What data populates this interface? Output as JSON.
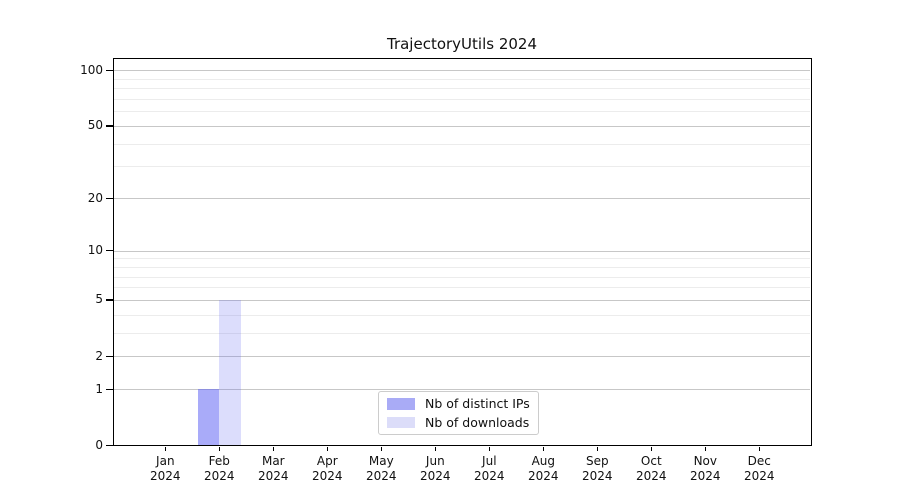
{
  "chart_data": {
    "type": "bar",
    "title": "TrajectoryUtils 2024",
    "months": [
      "Jan",
      "Feb",
      "Mar",
      "Apr",
      "May",
      "Jun",
      "Jul",
      "Aug",
      "Sep",
      "Oct",
      "Nov",
      "Dec"
    ],
    "year": "2024",
    "series": [
      {
        "name": "Nb of distinct IPs",
        "values": [
          0,
          1,
          0,
          0,
          0,
          0,
          0,
          0,
          0,
          0,
          0,
          0
        ],
        "legend_color": "#a9abf6",
        "fill": "rgba(90,93,243,0.52)"
      },
      {
        "name": "Nb of downloads",
        "values": [
          0,
          5,
          0,
          0,
          0,
          0,
          0,
          0,
          0,
          0,
          0,
          0
        ],
        "legend_color": "#dcddf9",
        "fill": "rgba(90,93,243,0.21)"
      }
    ],
    "yticks": [
      0,
      1,
      2,
      5,
      10,
      20,
      50,
      100
    ],
    "minor_yticks": [
      3,
      4,
      6,
      7,
      8,
      9,
      30,
      40,
      60,
      70,
      80,
      90
    ],
    "scale": "log10(value+1)",
    "ylim": [
      0,
      116
    ],
    "xlabel": "",
    "ylabel": "",
    "grid": true,
    "legend_position": "lower center",
    "colors": {
      "major_grid": "#c7c7c7",
      "minor_grid": "#ececec",
      "spine": "#000000",
      "text": "#111111"
    }
  }
}
